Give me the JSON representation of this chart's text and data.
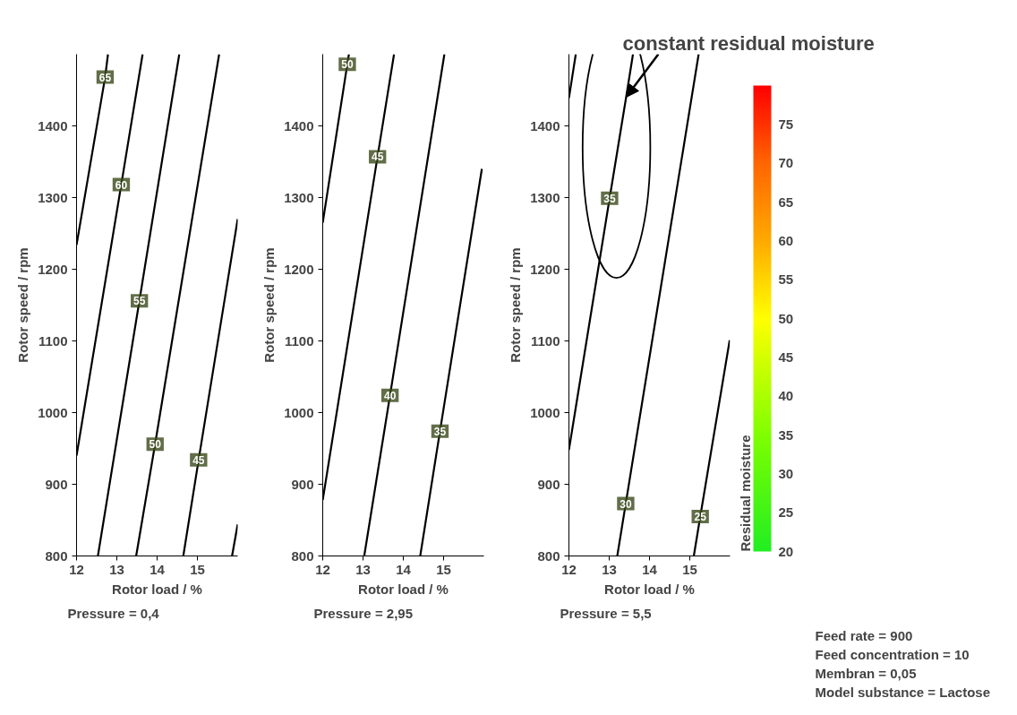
{
  "chart_data": [
    {
      "type": "line",
      "xlabel": "Rotor load / %",
      "ylabel": "Rotor speed / rpm",
      "xlim": [
        12,
        16
      ],
      "xticks": [
        12,
        13,
        14,
        15
      ],
      "ylim": [
        800,
        1500
      ],
      "yticks": [
        800,
        900,
        1000,
        1100,
        1200,
        1300,
        1400
      ],
      "series": [
        {
          "name": "65",
          "color": "#000000",
          "x": [
            12,
            12.71,
            12.78
          ],
          "values": [
            1234,
            1468,
            1500
          ]
        },
        {
          "name": "60",
          "color": "#000000",
          "x": [
            12,
            13.11,
            13.64
          ],
          "values": [
            940,
            1318,
            1500
          ]
        },
        {
          "name": "55",
          "color": "#000000",
          "x": [
            12.53,
            13.56,
            14.55
          ],
          "values": [
            800,
            1156,
            1500
          ]
        },
        {
          "name": "50",
          "color": "#000000",
          "x": [
            13.48,
            13.95,
            15.54
          ],
          "values": [
            800,
            956,
            1500
          ]
        },
        {
          "name": "45",
          "color": "#000000",
          "x": [
            14.65,
            15.03,
            16
          ],
          "values": [
            800,
            934,
            1270
          ]
        },
        {
          "color": "#000000",
          "x": [
            15.86,
            16
          ],
          "values": [
            800,
            844
          ]
        }
      ],
      "annotations": [
        "Pressure = 0,4"
      ]
    },
    {
      "type": "line",
      "xlabel": "Rotor load / %",
      "ylabel": "Rotor speed / rpm",
      "xlim": [
        12,
        16
      ],
      "xticks": [
        12,
        13,
        14,
        15
      ],
      "ylim": [
        800,
        1500
      ],
      "yticks": [
        800,
        900,
        1000,
        1100,
        1200,
        1300,
        1400
      ],
      "series": [
        {
          "name": "50",
          "color": "#000000",
          "x": [
            12,
            12.61,
            12.65
          ],
          "values": [
            1265,
            1486,
            1500
          ]
        },
        {
          "name": "45",
          "color": "#000000",
          "x": [
            12,
            13.36,
            13.77
          ],
          "values": [
            878,
            1357,
            1500
          ]
        },
        {
          "name": "40",
          "color": "#000000",
          "x": [
            13.03,
            13.67,
            15.02
          ],
          "values": [
            800,
            1024,
            1500
          ]
        },
        {
          "name": "35",
          "color": "#000000",
          "x": [
            14.42,
            14.91,
            15.95
          ],
          "values": [
            800,
            974,
            1340
          ]
        }
      ],
      "annotations": [
        "Pressure = 2,95"
      ]
    },
    {
      "type": "line",
      "xlabel": "Rotor load / %",
      "ylabel": "Rotor speed / rpm",
      "xlim": [
        12,
        16
      ],
      "xticks": [
        12,
        13,
        14,
        15
      ],
      "ylim": [
        800,
        1500
      ],
      "yticks": [
        800,
        900,
        1000,
        1100,
        1200,
        1300,
        1400
      ],
      "series": [
        {
          "color": "#000000",
          "x": [
            12,
            12.17
          ],
          "values": [
            1439,
            1500
          ]
        },
        {
          "name": "35",
          "color": "#000000",
          "x": [
            12,
            13.01,
            13.42,
            13.59
          ],
          "values": [
            948,
            1299,
            1440,
            1500
          ]
        },
        {
          "name": "30",
          "color": "#000000",
          "x": [
            13.2,
            13.41,
            15.22
          ],
          "values": [
            800,
            873,
            1500
          ]
        },
        {
          "name": "25",
          "color": "#000000",
          "x": [
            15.1,
            15.26,
            15.99
          ],
          "values": [
            800,
            855,
            1101
          ]
        }
      ],
      "clim": [
        20,
        80
      ],
      "cticks": [
        20,
        25,
        30,
        35,
        40,
        45,
        50,
        55,
        60,
        65,
        70,
        75
      ],
      "clabel": "Residual moisture",
      "annotations": [
        "Pressure = 5,5",
        {
          "text": "constant residual moisture",
          "x": 13.42,
          "y": 1440
        },
        "Feed rate = 900",
        "Feed concentration = 10",
        "Membran = 0,05",
        "Model substance = Lactose"
      ]
    }
  ]
}
